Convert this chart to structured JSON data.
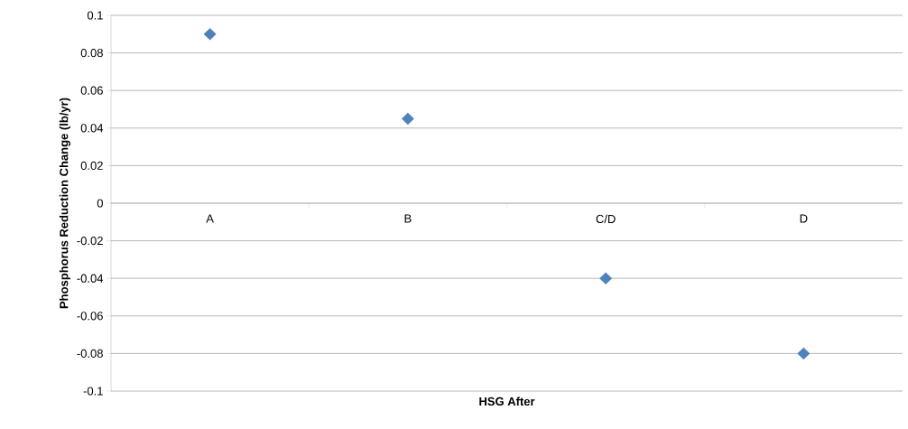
{
  "chart_data": {
    "type": "scatter",
    "xlabel": "HSG After",
    "ylabel": "Phosphorus Reduction Change (lb/yr)",
    "categories": [
      "A",
      "B",
      "C/D",
      "D"
    ],
    "values": [
      0.09,
      0.045,
      -0.04,
      -0.08
    ],
    "color": "#4f81bd",
    "marker": "diamond",
    "ylim": [
      -0.1,
      0.1
    ],
    "yticks": [
      -0.1,
      -0.08,
      -0.06,
      -0.04,
      -0.02,
      0,
      0.02,
      0.04,
      0.06,
      0.08,
      0.1
    ],
    "grid": "y"
  }
}
